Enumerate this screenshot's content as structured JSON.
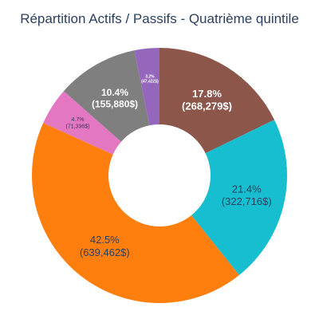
{
  "chart_data": {
    "type": "pie",
    "title": "Répartition Actifs / Passifs - Quatrième quintile",
    "hole": 0.4,
    "direction": "clockwise",
    "slices": [
      {
        "percent_label": "17.8%",
        "value_label": "(268,279$)",
        "value": 268279,
        "color": "#8c564b",
        "text_color": "#ffffff"
      },
      {
        "percent_label": "21.4%",
        "value_label": "(322,716$)",
        "value": 322716,
        "color": "#17becf",
        "text_color": "#2a3f5f"
      },
      {
        "percent_label": "42.5%",
        "value_label": "(639,462$)",
        "value": 639462,
        "color": "#ff7f0e",
        "text_color": "#2a3f5f"
      },
      {
        "percent_label": "4.7%",
        "value_label": "(71,396$)",
        "value": 71396,
        "color": "#e377c2",
        "text_color": "#2a3f5f"
      },
      {
        "percent_label": "10.4%",
        "value_label": "(155,880$)",
        "value": 155880,
        "color": "#7f7f7f",
        "text_color": "#ffffff"
      },
      {
        "percent_label": "3.2%",
        "value_label": "(47,422$)",
        "value": 47422,
        "color": "#9467bd",
        "text_color": "#ffffff"
      }
    ]
  }
}
